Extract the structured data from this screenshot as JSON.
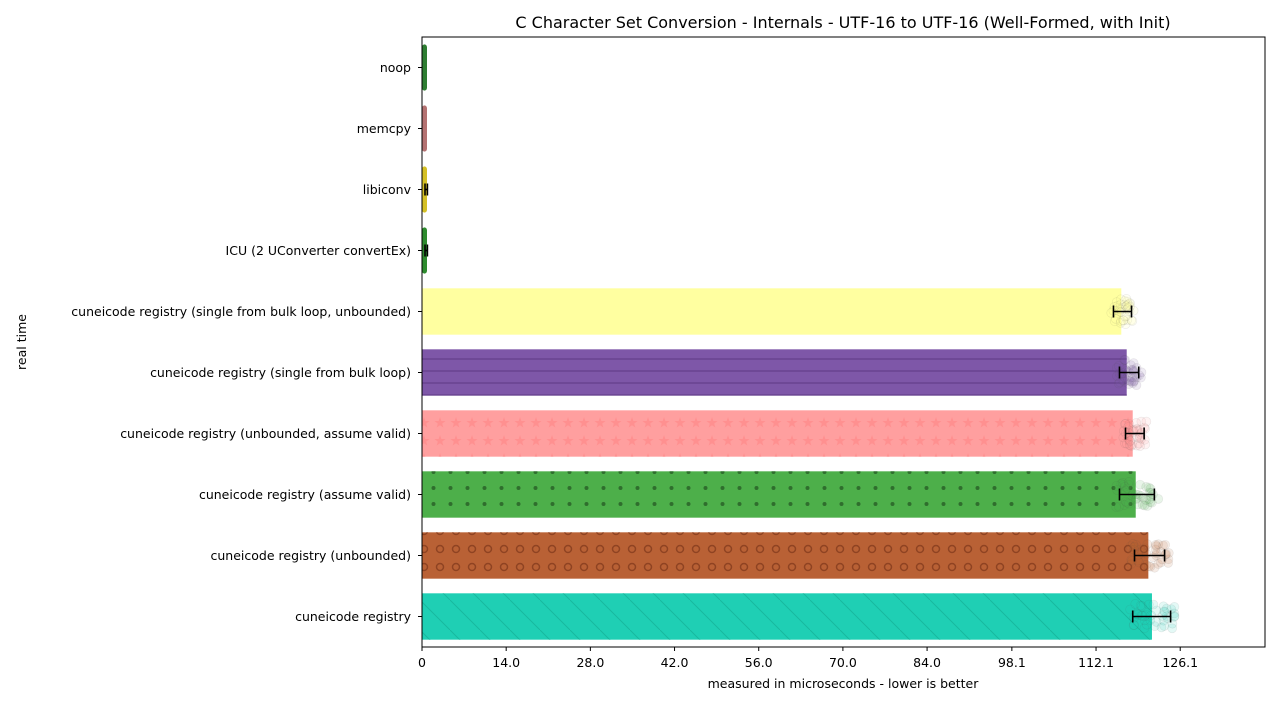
{
  "chart_data": {
    "type": "bar",
    "orientation": "horizontal",
    "title": "C Character Set Conversion - Internals - UTF-16 to UTF-16 (Well-Formed, with Init)",
    "xlabel": "measured in microseconds - lower is better",
    "ylabel": "real time",
    "xlim": [
      0,
      140.2
    ],
    "xticks": [
      0,
      14.0,
      28.0,
      42.0,
      56.0,
      70.0,
      84.0,
      98.1,
      112.1,
      126.1
    ],
    "xtick_labels": [
      "0",
      "14.0",
      "28.0",
      "42.0",
      "56.0",
      "70.0",
      "84.0",
      "98.1",
      "112.1",
      "126.1"
    ],
    "grid": false,
    "legend": "none",
    "categories": [
      "noop",
      "memcpy",
      "libiconv",
      "ICU (2 UConverter convertEx)",
      "cuneicode registry (single from bulk loop, unbounded)",
      "cuneicode registry (single from bulk loop)",
      "cuneicode registry (unbounded, assume valid)",
      "cuneicode registry (assume valid)",
      "cuneicode registry (unbounded)",
      "cuneicode registry"
    ],
    "values": [
      0.2,
      0.2,
      0.7,
      0.7,
      116.3,
      117.2,
      118.2,
      118.7,
      120.8,
      121.4
    ],
    "error_low": [
      0.2,
      0.2,
      0.5,
      0.5,
      115.0,
      116.0,
      117.0,
      116.0,
      118.5,
      118.2
    ],
    "error_high": [
      0.2,
      0.2,
      0.9,
      0.9,
      118.0,
      119.2,
      120.1,
      121.8,
      123.5,
      124.5
    ],
    "colors": [
      "#2e7d32",
      "#b47272",
      "#d4c026",
      "#2e8b2e",
      "#ffffa0",
      "#7e57a8",
      "#ff9f9f",
      "#4daf4a",
      "#b96135",
      "#1fcfb4"
    ],
    "patterns": [
      "none",
      "none",
      "none",
      "none",
      "none",
      "hline",
      "star",
      "dot",
      "circle",
      "diag"
    ]
  }
}
